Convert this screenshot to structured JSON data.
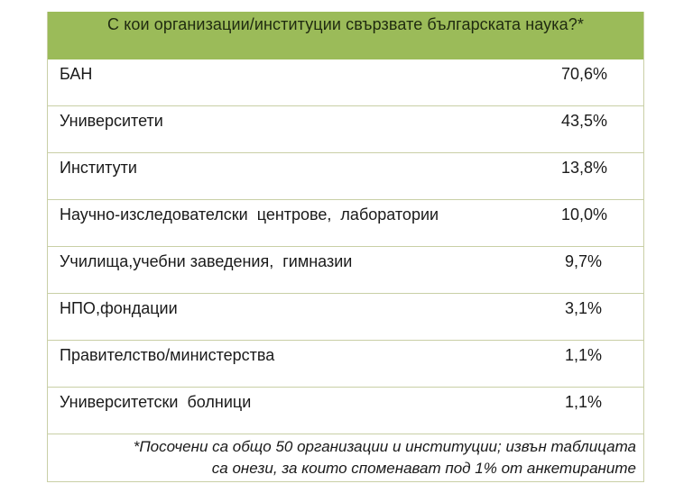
{
  "table": {
    "title": "С кои организации/институции свързвате българската наука?*",
    "header_color": "#9bbb59",
    "border_color": "#c9cfa6",
    "rows": [
      {
        "label": "БАН",
        "value": "70,6%"
      },
      {
        "label": "Университети",
        "value": "43,5%"
      },
      {
        "label": "Институти",
        "value": "13,8%"
      },
      {
        "label": "Научно-изследователски  центрове,  лаборатории",
        "value": "10,0%"
      },
      {
        "label": "Училища,учебни заведения,  гимназии",
        "value": "9,7%"
      },
      {
        "label": "НПО,фондации",
        "value": "3,1%"
      },
      {
        "label": "Правителство/министерства",
        "value": "1,1%"
      },
      {
        "label": "Университетски  болници",
        "value": "1,1%"
      }
    ],
    "footnote": {
      "line1": "*Посочени са общо 50 организации и институции; извън таблицата",
      "line2": "са онези, за които споменават под 1% от анкетираните"
    }
  }
}
